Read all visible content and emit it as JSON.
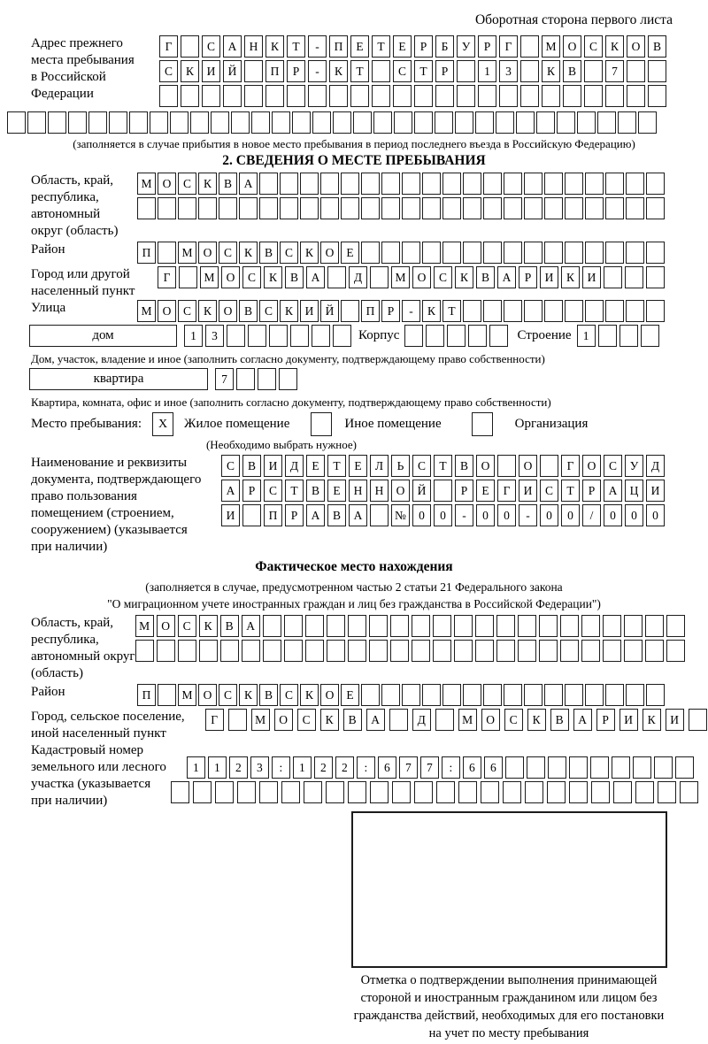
{
  "page": {
    "top_note": "Оборотная сторона первого листа"
  },
  "prev_address": {
    "label_lines": [
      "Адрес прежнего",
      "места пребывания",
      "в Российской",
      "Федерации"
    ],
    "row1": {
      "total": 24,
      "chars": [
        "Г",
        "",
        "С",
        "А",
        "Н",
        "К",
        "Т",
        "-",
        "П",
        "Е",
        "Т",
        "Е",
        "Р",
        "Б",
        "У",
        "Р",
        "Г",
        "",
        "М",
        "О",
        "С",
        "К",
        "О",
        "В"
      ]
    },
    "row2": {
      "total": 24,
      "chars": [
        "С",
        "К",
        "И",
        "Й",
        "",
        "П",
        "Р",
        "-",
        "К",
        "Т",
        "",
        "С",
        "Т",
        "Р",
        "",
        "1",
        "3",
        "",
        "К",
        "В",
        "",
        "7"
      ]
    },
    "row3": {
      "total": 24,
      "chars": []
    },
    "row4": {
      "total": 32,
      "chars": []
    },
    "note": "(заполняется в случае прибытия в новое место пребывания в период последнего въезда в Российскую Федерацию)"
  },
  "section2": {
    "title": "2. СВЕДЕНИЯ О МЕСТЕ ПРЕБЫВАНИЯ",
    "region": {
      "label_lines": [
        "Область, край,",
        "республика,",
        "автономный",
        "округ (область)"
      ],
      "row1": {
        "total": 26,
        "chars": [
          "М",
          "О",
          "С",
          "К",
          "В",
          "А"
        ]
      },
      "row2": {
        "total": 26,
        "chars": []
      }
    },
    "district": {
      "label": "Район",
      "row": {
        "total": 26,
        "chars": [
          "П",
          "",
          "М",
          "О",
          "С",
          "К",
          "В",
          "С",
          "К",
          "О",
          "Е"
        ]
      }
    },
    "city": {
      "label_lines": [
        "Город или другой",
        "населенный пункт"
      ],
      "row": {
        "total": 24,
        "chars": [
          "Г",
          "",
          "М",
          "О",
          "С",
          "К",
          "В",
          "А",
          "",
          "Д",
          "",
          "М",
          "О",
          "С",
          "К",
          "В",
          "А",
          "Р",
          "И",
          "К",
          "И"
        ]
      }
    },
    "street": {
      "label": "Улица",
      "row": {
        "total": 26,
        "chars": [
          "М",
          "О",
          "С",
          "К",
          "О",
          "В",
          "С",
          "К",
          "И",
          "Й",
          "",
          "П",
          "Р",
          "-",
          "К",
          "Т"
        ]
      }
    },
    "house": {
      "box_label": "дом",
      "cells": {
        "total": 8,
        "chars": [
          "1",
          "3"
        ]
      },
      "korpus_label": "Корпус",
      "korpus_cells": {
        "total": 5,
        "chars": []
      },
      "stroenie_label": "Строение",
      "stroenie_cells": {
        "total": 4,
        "chars": [
          "1"
        ]
      },
      "note": "Дом, участок, владение и иное (заполнить согласно документу, подтверждающему право собственности)"
    },
    "apartment": {
      "box_label": "квартира",
      "cells": {
        "total": 4,
        "chars": [
          "7"
        ]
      },
      "note": "Квартира, комната, офис и иное (заполнить согласно документу, подтверждающему право собственности)"
    },
    "stay_type": {
      "label": "Место пребывания:",
      "options": [
        {
          "label": "Жилое помещение",
          "mark": "X"
        },
        {
          "label": "Иное помещение",
          "mark": ""
        },
        {
          "label": "Организация",
          "mark": ""
        }
      ],
      "note": "(Необходимо выбрать нужное)"
    },
    "document": {
      "label_lines": [
        "Наименование и реквизиты",
        "документа, подтверждающего",
        "право пользования",
        "помещением (строением,",
        "сооружением) (указывается",
        "при наличии)"
      ],
      "row1": {
        "total": 21,
        "chars": [
          "С",
          "В",
          "И",
          "Д",
          "Е",
          "Т",
          "Е",
          "Л",
          "Ь",
          "С",
          "Т",
          "В",
          "О",
          "",
          "О",
          "",
          "Г",
          "О",
          "С",
          "У",
          "Д"
        ]
      },
      "row2": {
        "total": 21,
        "chars": [
          "А",
          "Р",
          "С",
          "Т",
          "В",
          "Е",
          "Н",
          "Н",
          "О",
          "Й",
          "",
          "Р",
          "Е",
          "Г",
          "И",
          "С",
          "Т",
          "Р",
          "А",
          "Ц",
          "И"
        ]
      },
      "row3": {
        "total": 21,
        "chars": [
          "И",
          "",
          "П",
          "Р",
          "А",
          "В",
          "А",
          "",
          "№",
          "0",
          "0",
          "-",
          "0",
          "0",
          "-",
          "0",
          "0",
          "/",
          "0",
          "0",
          "0"
        ]
      }
    }
  },
  "actual_location": {
    "title": "Фактическое место нахождения",
    "note_lines": [
      "(заполняется в случае, предусмотренном частью 2 статьи 21 Федерального закона",
      "\"О миграционном учете иностранных граждан и лиц без гражданства в Российской Федерации\")"
    ],
    "region": {
      "label_lines": [
        "Область, край,",
        "республика,",
        "автономный округ",
        "(область)"
      ],
      "row1": {
        "total": 26,
        "chars": [
          "М",
          "О",
          "С",
          "К",
          "В",
          "А"
        ]
      },
      "row2": {
        "total": 26,
        "chars": []
      }
    },
    "district": {
      "label": "Район",
      "row": {
        "total": 26,
        "chars": [
          "П",
          "",
          "М",
          "О",
          "С",
          "К",
          "В",
          "С",
          "К",
          "О",
          "Е"
        ]
      }
    },
    "city": {
      "label_lines": [
        "Город, сельское поселение,",
        "иной населенный пункт"
      ],
      "row": {
        "total": 22,
        "chars": [
          "Г",
          "",
          "М",
          "О",
          "С",
          "К",
          "В",
          "А",
          "",
          "Д",
          "",
          "М",
          "О",
          "С",
          "К",
          "В",
          "А",
          "Р",
          "И",
          "К",
          "И"
        ]
      }
    },
    "cadastre": {
      "label_lines": [
        "Кадастровый номер",
        "земельного или лесного",
        "участка (указывается",
        "при наличии)"
      ],
      "row1": {
        "total": 24,
        "chars": [
          "1",
          "1",
          "2",
          "3",
          ":",
          "1",
          "2",
          "2",
          ":",
          "6",
          "7",
          "7",
          ":",
          "6",
          "6"
        ]
      },
      "row2": {
        "total": 24,
        "chars": []
      }
    },
    "stamp": {
      "caption_lines": [
        "Отметка о подтверждении выполнения принимающей",
        "стороной и иностранным гражданином или лицом без",
        "гражданства действий, необходимых для его постановки",
        "на учет по месту пребывания"
      ]
    }
  }
}
